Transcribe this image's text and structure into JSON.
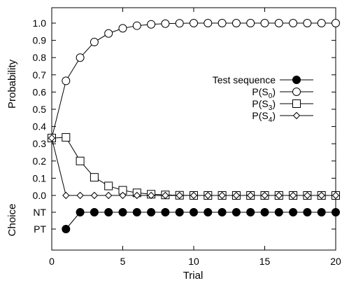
{
  "chart_data": {
    "type": "line",
    "xlabel": "Trial",
    "ylabel_top": "Probability",
    "ylabel_bottom": "Choice",
    "xlim": [
      0,
      20
    ],
    "ylim_top": [
      0,
      1.05
    ],
    "x_ticks": [
      0,
      5,
      10,
      15,
      20
    ],
    "y_ticks_top": [
      "0.0",
      "0.1",
      "0.2",
      "0.3",
      "0.4",
      "0.5",
      "0.6",
      "0.7",
      "0.8",
      "0.9",
      "1.0"
    ],
    "choice_ticks": [
      "NT",
      "PT"
    ],
    "legend_position": "right-middle",
    "grid": false,
    "x": [
      0,
      1,
      2,
      3,
      4,
      5,
      6,
      7,
      8,
      9,
      10,
      11,
      12,
      13,
      14,
      15,
      16,
      17,
      18,
      19,
      20
    ],
    "series": [
      {
        "name": "P(S0)",
        "label_base": "P(S",
        "label_sub": "0",
        "label_end": ")",
        "marker": "circle",
        "values": [
          0.333,
          0.665,
          0.8,
          0.89,
          0.94,
          0.97,
          0.985,
          0.993,
          0.997,
          0.999,
          1.0,
          1.0,
          1.0,
          1.0,
          1.0,
          1.0,
          1.0,
          1.0,
          1.0,
          1.0,
          1.0
        ]
      },
      {
        "name": "P(S3)",
        "label_base": "P(S",
        "label_sub": "3",
        "label_end": ")",
        "marker": "square",
        "values": [
          0.333,
          0.337,
          0.2,
          0.105,
          0.055,
          0.03,
          0.015,
          0.007,
          0.003,
          0.001,
          0.0,
          0.0,
          0.0,
          0.0,
          0.0,
          0.0,
          0.0,
          0.0,
          0.0,
          0.0,
          0.0
        ]
      },
      {
        "name": "P(S4)",
        "label_base": "P(S",
        "label_sub": "4",
        "label_end": ")",
        "marker": "diamond",
        "values": [
          0.333,
          0.0,
          0.0,
          0.0,
          0.0,
          0.0,
          0.0,
          0.0,
          0.0,
          0.0,
          0.0,
          0.0,
          0.0,
          0.0,
          0.0,
          0.0,
          0.0,
          0.0,
          0.0,
          0.0,
          0.0
        ]
      }
    ],
    "test_sequence": {
      "name": "Test sequence",
      "marker": "filled-circle",
      "x": [
        1,
        2,
        3,
        4,
        5,
        6,
        7,
        8,
        9,
        10,
        11,
        12,
        13,
        14,
        15,
        16,
        17,
        18,
        19,
        20
      ],
      "values": [
        "PT",
        "NT",
        "NT",
        "NT",
        "NT",
        "NT",
        "NT",
        "NT",
        "NT",
        "NT",
        "NT",
        "NT",
        "NT",
        "NT",
        "NT",
        "NT",
        "NT",
        "NT",
        "NT",
        "NT"
      ]
    }
  }
}
